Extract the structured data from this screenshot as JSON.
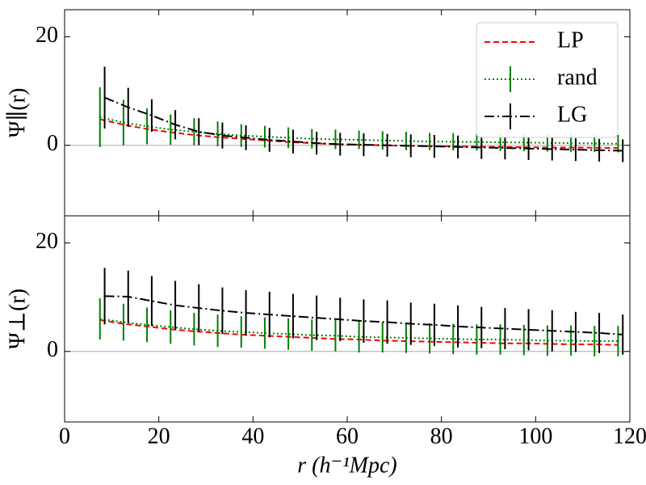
{
  "chart_data": [
    {
      "type": "line",
      "ylabel": "Ψ∥(r)",
      "xlim": [
        0,
        120
      ],
      "ylim": [
        -13,
        25
      ],
      "xticks": [
        0,
        20,
        40,
        60,
        80,
        100,
        120
      ],
      "yticks": [
        0,
        20
      ],
      "show_xtick_labels": false,
      "hline": 0,
      "legend": "upper right",
      "series": [
        {
          "name": "LP",
          "color": "#ff0000",
          "style": "dashed",
          "x": [
            7.5,
            12.5,
            17.5,
            22.5,
            27.5,
            32.5,
            37.5,
            42.5,
            47.5,
            52.5,
            57.5,
            62.5,
            67.5,
            72.5,
            77.5,
            82.5,
            87.5,
            92.5,
            97.5,
            102.5,
            107.5,
            112.5,
            117.5
          ],
          "values": [
            4.8,
            3.8,
            3.0,
            2.4,
            1.9,
            1.5,
            1.2,
            0.9,
            0.6,
            0.4,
            0.2,
            0.1,
            0,
            -0.1,
            -0.15,
            -0.2,
            -0.25,
            -0.3,
            -0.35,
            -0.4,
            -0.4,
            -0.45,
            -0.5
          ]
        },
        {
          "name": "rand",
          "color": "#008000",
          "style": "dotted",
          "x": [
            7.5,
            12.5,
            17.5,
            22.5,
            27.5,
            32.5,
            37.5,
            42.5,
            47.5,
            52.5,
            57.5,
            62.5,
            67.5,
            72.5,
            77.5,
            82.5,
            87.5,
            92.5,
            97.5,
            102.5,
            107.5,
            112.5,
            117.5
          ],
          "values": [
            5.2,
            4.2,
            3.5,
            2.9,
            2.5,
            2.1,
            1.8,
            1.6,
            1.4,
            1.2,
            1.1,
            1.0,
            0.9,
            0.8,
            0.7,
            0.65,
            0.6,
            0.55,
            0.5,
            0.45,
            0.4,
            0.35,
            0.3
          ],
          "errors": [
            5.5,
            4.2,
            3.3,
            2.8,
            2.5,
            2.3,
            2.1,
            2.0,
            1.9,
            1.8,
            1.8,
            1.7,
            1.7,
            1.7,
            1.6,
            1.6,
            1.6,
            1.6,
            1.6,
            1.6,
            1.6,
            1.6,
            1.6
          ]
        },
        {
          "name": "LG",
          "color": "#000000",
          "style": "dashdot",
          "x": [
            8.5,
            13.5,
            18.5,
            23.5,
            28.5,
            33.5,
            38.5,
            43.5,
            48.5,
            53.5,
            58.5,
            63.5,
            68.5,
            73.5,
            78.5,
            83.5,
            88.5,
            93.5,
            98.5,
            103.5,
            108.5,
            113.5,
            118.5
          ],
          "values": [
            8.8,
            7.0,
            5.5,
            3.8,
            2.5,
            1.8,
            1.4,
            1.0,
            0.7,
            0.4,
            0.2,
            0.1,
            0,
            -0.1,
            -0.2,
            -0.3,
            -0.4,
            -0.5,
            -0.6,
            -0.7,
            -0.8,
            -0.9,
            -1.0
          ],
          "errors": [
            5.7,
            3.6,
            3.0,
            2.7,
            2.5,
            2.4,
            2.3,
            2.2,
            2.2,
            2.1,
            2.1,
            2.1,
            2.1,
            2.1,
            2.1,
            2.1,
            2.1,
            2.1,
            2.1,
            2.1,
            2.1,
            2.1,
            2.1
          ]
        }
      ]
    },
    {
      "type": "line",
      "ylabel": "Ψ⊥(r)",
      "xlabel": "r (h⁻¹Mpc)",
      "xlim": [
        0,
        120
      ],
      "ylim": [
        -13,
        25
      ],
      "xticks": [
        0,
        20,
        40,
        60,
        80,
        100,
        120
      ],
      "yticks": [
        0,
        20
      ],
      "show_xtick_labels": true,
      "hline": 0,
      "series": [
        {
          "name": "LP",
          "color": "#ff0000",
          "style": "dashed",
          "x": [
            7.5,
            12.5,
            17.5,
            22.5,
            27.5,
            32.5,
            37.5,
            42.5,
            47.5,
            52.5,
            57.5,
            62.5,
            67.5,
            72.5,
            77.5,
            82.5,
            87.5,
            92.5,
            97.5,
            102.5,
            107.5,
            112.5,
            117.5
          ],
          "values": [
            5.8,
            5.1,
            4.6,
            4.1,
            3.7,
            3.4,
            3.1,
            2.9,
            2.7,
            2.5,
            2.3,
            2.2,
            2.0,
            1.9,
            1.8,
            1.7,
            1.6,
            1.5,
            1.5,
            1.4,
            1.3,
            1.3,
            1.2
          ]
        },
        {
          "name": "rand",
          "color": "#008000",
          "style": "dotted",
          "x": [
            7.5,
            12.5,
            17.5,
            22.5,
            27.5,
            32.5,
            37.5,
            42.5,
            47.5,
            52.5,
            57.5,
            62.5,
            67.5,
            72.5,
            77.5,
            82.5,
            87.5,
            92.5,
            97.5,
            102.5,
            107.5,
            112.5,
            117.5
          ],
          "values": [
            6.0,
            5.4,
            4.9,
            4.5,
            4.1,
            3.8,
            3.6,
            3.4,
            3.2,
            3.0,
            2.9,
            2.7,
            2.6,
            2.5,
            2.4,
            2.3,
            2.2,
            2.2,
            2.1,
            2.0,
            2.0,
            1.9,
            1.9
          ],
          "errors": [
            3.8,
            3.4,
            3.2,
            3.1,
            3.0,
            3.0,
            2.9,
            2.9,
            2.9,
            2.9,
            2.9,
            2.9,
            2.8,
            2.8,
            2.8,
            2.8,
            2.8,
            2.8,
            2.8,
            2.8,
            2.8,
            2.8,
            2.8
          ]
        },
        {
          "name": "LG",
          "color": "#000000",
          "style": "dashdot",
          "x": [
            8.5,
            13.5,
            18.5,
            23.5,
            28.5,
            33.5,
            38.5,
            43.5,
            48.5,
            53.5,
            58.5,
            63.5,
            68.5,
            73.5,
            78.5,
            83.5,
            88.5,
            93.5,
            98.5,
            103.5,
            108.5,
            113.5,
            118.5
          ],
          "values": [
            10.2,
            10.1,
            9.3,
            8.5,
            8.0,
            7.5,
            7.1,
            6.8,
            6.5,
            6.2,
            5.9,
            5.6,
            5.4,
            5.1,
            4.9,
            4.6,
            4.4,
            4.2,
            4.0,
            3.8,
            3.6,
            3.4,
            3.1
          ],
          "errors": [
            5.2,
            4.8,
            4.6,
            4.5,
            4.4,
            4.3,
            4.2,
            4.2,
            4.1,
            4.1,
            4.0,
            4.0,
            4.0,
            3.9,
            3.9,
            3.9,
            3.8,
            3.8,
            3.8,
            3.8,
            3.7,
            3.7,
            3.7
          ]
        }
      ]
    }
  ]
}
